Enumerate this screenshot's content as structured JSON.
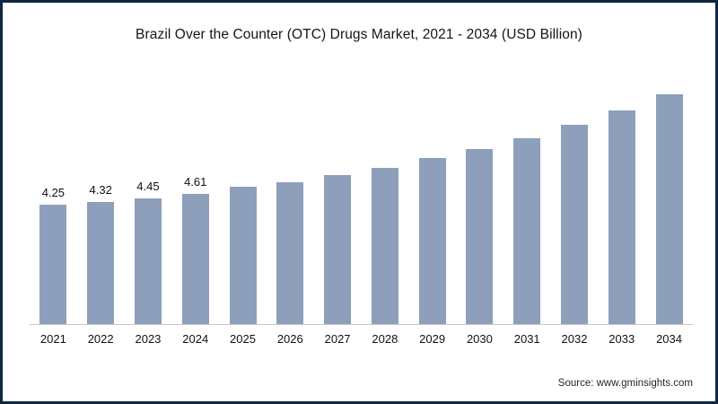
{
  "page": {
    "border_color": "#0e2742",
    "background": "#ffffff"
  },
  "chart_data": {
    "type": "bar",
    "title": "Brazil Over the Counter (OTC) Drugs Market, 2021 - 2034 (USD Billion)",
    "categories": [
      "2021",
      "2022",
      "2023",
      "2024",
      "2025",
      "2026",
      "2027",
      "2028",
      "2029",
      "2030",
      "2031",
      "2032",
      "2033",
      "2034"
    ],
    "values": [
      4.25,
      4.32,
      4.45,
      4.61,
      4.86,
      5.05,
      5.3,
      5.56,
      5.88,
      6.2,
      6.61,
      7.06,
      7.57,
      8.15
    ],
    "data_labels": [
      "4.25",
      "4.32",
      "4.45",
      "4.61",
      "",
      "",
      "",
      "",
      "",
      "",
      "",
      "",
      "",
      ""
    ],
    "bar_color": "#8d9fba",
    "axis_line_color": "#c8c8c8",
    "ylim": [
      0,
      9.4
    ],
    "xlabel": "",
    "ylabel": "",
    "grid": false,
    "legend": "none"
  },
  "footer": {
    "source": "Source: www.gminsights.com"
  }
}
